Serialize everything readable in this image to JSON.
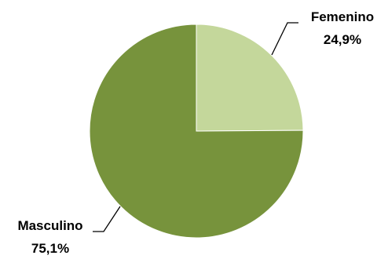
{
  "chart_data": {
    "type": "pie",
    "slices": [
      {
        "name": "Femenino",
        "value": 24.9,
        "label": "24,9%",
        "color": "#c4d79b"
      },
      {
        "name": "Masculino",
        "value": 75.1,
        "label": "75,1%",
        "color": "#77933c"
      }
    ],
    "title": "",
    "legend": "none",
    "start": "top",
    "direction": "clockwise"
  }
}
